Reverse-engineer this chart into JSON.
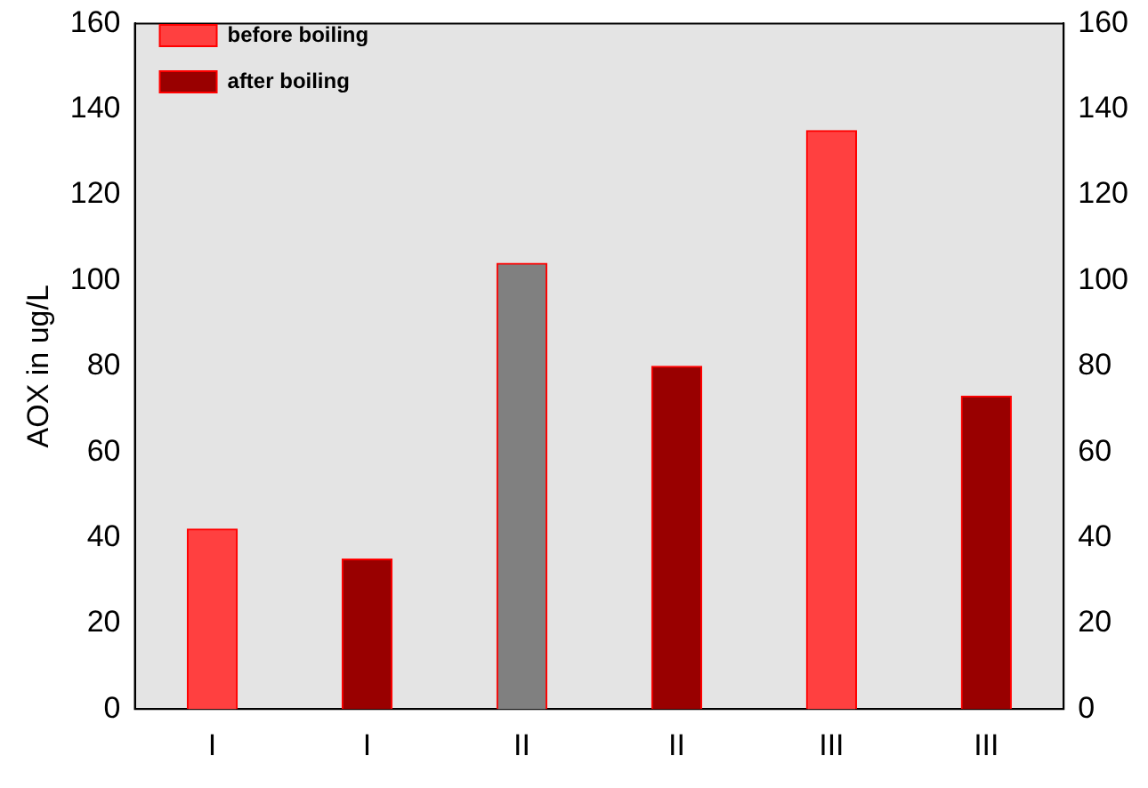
{
  "chart_data": {
    "type": "bar",
    "ylabel": "AOX in ug/L",
    "categories": [
      "I",
      "I",
      "II",
      "II",
      "III",
      "III"
    ],
    "series": [
      {
        "name": "before boiling",
        "color": "#ff4040",
        "colors": [
          "#ff4040",
          "#ff4040",
          "#808080",
          "#ff4040",
          "#ff4040",
          "#ff4040"
        ],
        "values": [
          42,
          null,
          104,
          null,
          135,
          null
        ]
      },
      {
        "name": "after boiling",
        "color": "#990000",
        "values": [
          null,
          35,
          null,
          80,
          null,
          73
        ]
      }
    ],
    "ylim": [
      0,
      160
    ],
    "yticks": [
      0,
      20,
      40,
      60,
      80,
      100,
      120,
      140,
      160
    ],
    "y2lim": [
      0,
      160
    ],
    "y2ticks": [
      0,
      20,
      40,
      60,
      80,
      100,
      120,
      140,
      160
    ],
    "grid": false,
    "legend": "top left"
  }
}
